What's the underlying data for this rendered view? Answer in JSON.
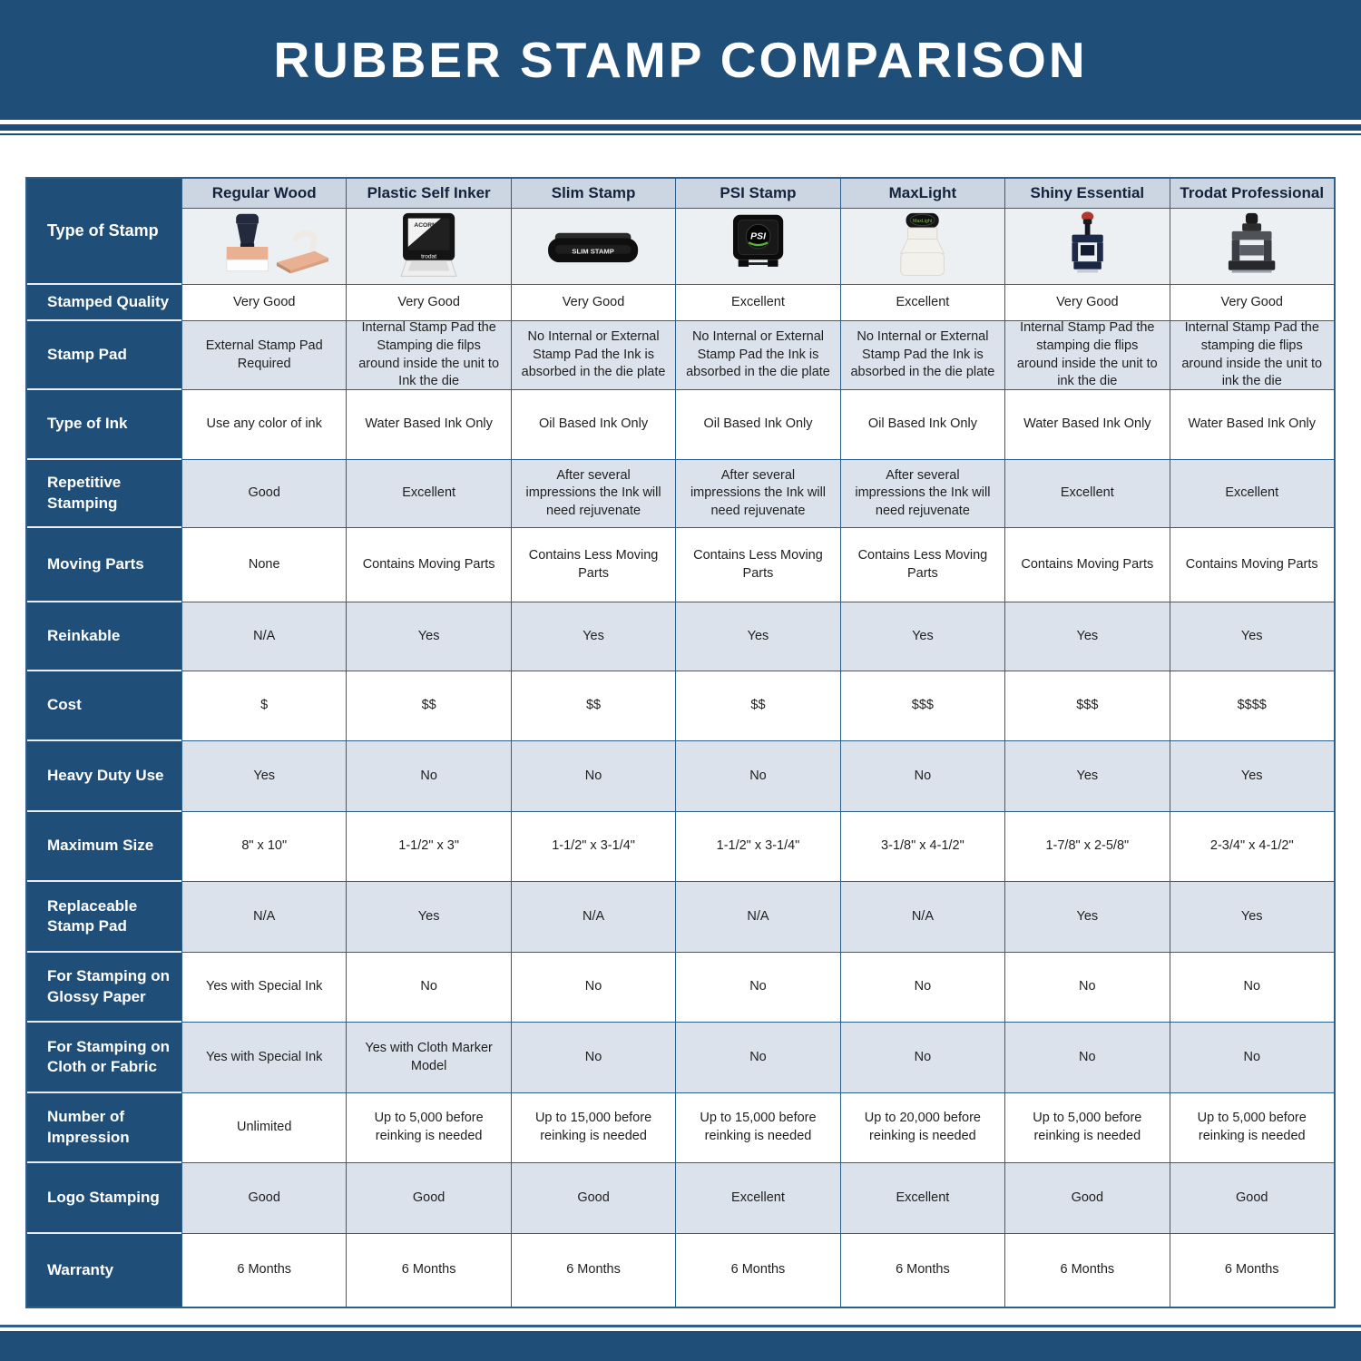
{
  "title": "RUBBER STAMP COMPARISON",
  "colors": {
    "banner_blue": "#1F4E79",
    "row_label_blue": "#1F4E79",
    "column_header_bg": "#CCD5E2",
    "alt_row_bg": "#DCE2EC",
    "grid_border": "#2E5F8A"
  },
  "table": {
    "corner_label": "Type of Stamp",
    "columns": [
      "Regular Wood",
      "Plastic Self Inker",
      "Slim Stamp",
      "PSI Stamp",
      "MaxLight",
      "Shiny Essential",
      "Trodat Professional"
    ],
    "column_icons": [
      "regular-wood-stamp-image",
      "plastic-self-inker-stamp-image",
      "slim-stamp-image",
      "psi-stamp-image",
      "maxlight-stamp-image",
      "shiny-essential-stamp-image",
      "trodat-professional-stamp-image"
    ],
    "icon_labels": {
      "plastic_self_inker_brand": "ACORN",
      "plastic_self_inker_maker": "trodat",
      "slim_stamp": "SLIM STAMP",
      "psi": "PSI",
      "maxlight": "MaxLight"
    },
    "rows": [
      {
        "label": "Stamped Quality",
        "values": [
          "Very Good",
          "Very Good",
          "Very Good",
          "Excellent",
          "Excellent",
          "Very Good",
          "Very Good"
        ]
      },
      {
        "label": "Stamp Pad",
        "values": [
          "External Stamp Pad Required",
          "Internal Stamp Pad the Stamping die filps around inside the unit to Ink the die",
          "No Internal or External Stamp Pad the Ink is absorbed in the die plate",
          "No Internal or External Stamp Pad the Ink is absorbed in the die plate",
          "No Internal or External Stamp Pad the Ink is absorbed in the die plate",
          "Internal Stamp Pad the stamping die flips around inside the unit to ink the die",
          "Internal Stamp Pad the stamping die flips around inside the unit to ink the die"
        ]
      },
      {
        "label": "Type of Ink",
        "values": [
          "Use any color of ink",
          "Water Based Ink Only",
          "Oil Based Ink Only",
          "Oil Based Ink Only",
          "Oil Based Ink Only",
          "Water Based Ink Only",
          "Water Based Ink Only"
        ]
      },
      {
        "label": "Repetitive Stamping",
        "values": [
          "Good",
          "Excellent",
          "After several impressions the Ink will need rejuvenate",
          "After several impressions the Ink will need rejuvenate",
          "After several impressions the Ink will need rejuvenate",
          "Excellent",
          "Excellent"
        ]
      },
      {
        "label": "Moving Parts",
        "values": [
          "None",
          "Contains Moving Parts",
          "Contains Less Moving Parts",
          "Contains Less Moving Parts",
          "Contains Less Moving Parts",
          "Contains Moving Parts",
          "Contains Moving Parts"
        ]
      },
      {
        "label": "Reinkable",
        "values": [
          "N/A",
          "Yes",
          "Yes",
          "Yes",
          "Yes",
          "Yes",
          "Yes"
        ]
      },
      {
        "label": "Cost",
        "values": [
          "$",
          "$$",
          "$$",
          "$$",
          "$$$",
          "$$$",
          "$$$$"
        ]
      },
      {
        "label": "Heavy Duty Use",
        "values": [
          "Yes",
          "No",
          "No",
          "No",
          "No",
          "Yes",
          "Yes"
        ]
      },
      {
        "label": "Maximum Size",
        "values": [
          "8\" x 10\"",
          "1-1/2\" x 3\"",
          "1-1/2\" x 3-1/4\"",
          "1-1/2\" x 3-1/4\"",
          "3-1/8\" x 4-1/2\"",
          "1-7/8\" x 2-5/8\"",
          "2-3/4\" x 4-1/2\""
        ]
      },
      {
        "label": "Replaceable Stamp Pad",
        "values": [
          "N/A",
          "Yes",
          "N/A",
          "N/A",
          "N/A",
          "Yes",
          "Yes"
        ]
      },
      {
        "label": "For Stamping on Glossy Paper",
        "values": [
          "Yes with Special Ink",
          "No",
          "No",
          "No",
          "No",
          "No",
          "No"
        ]
      },
      {
        "label": "For Stamping on Cloth or Fabric",
        "values": [
          "Yes with Special Ink",
          "Yes with Cloth Marker Model",
          "No",
          "No",
          "No",
          "No",
          "No"
        ]
      },
      {
        "label": "Number of Impression",
        "values": [
          "Unlimited",
          "Up to 5,000 before reinking is needed",
          "Up to 15,000 before reinking is needed",
          "Up to 15,000 before reinking is needed",
          "Up to 20,000 before reinking is needed",
          "Up to 5,000 before reinking is needed",
          "Up to 5,000 before reinking is needed"
        ]
      },
      {
        "label": "Logo Stamping",
        "values": [
          "Good",
          "Good",
          "Good",
          "Excellent",
          "Excellent",
          "Good",
          "Good"
        ]
      },
      {
        "label": "Warranty",
        "values": [
          "6 Months",
          "6 Months",
          "6 Months",
          "6 Months",
          "6 Months",
          "6 Months",
          "6 Months"
        ]
      }
    ]
  }
}
